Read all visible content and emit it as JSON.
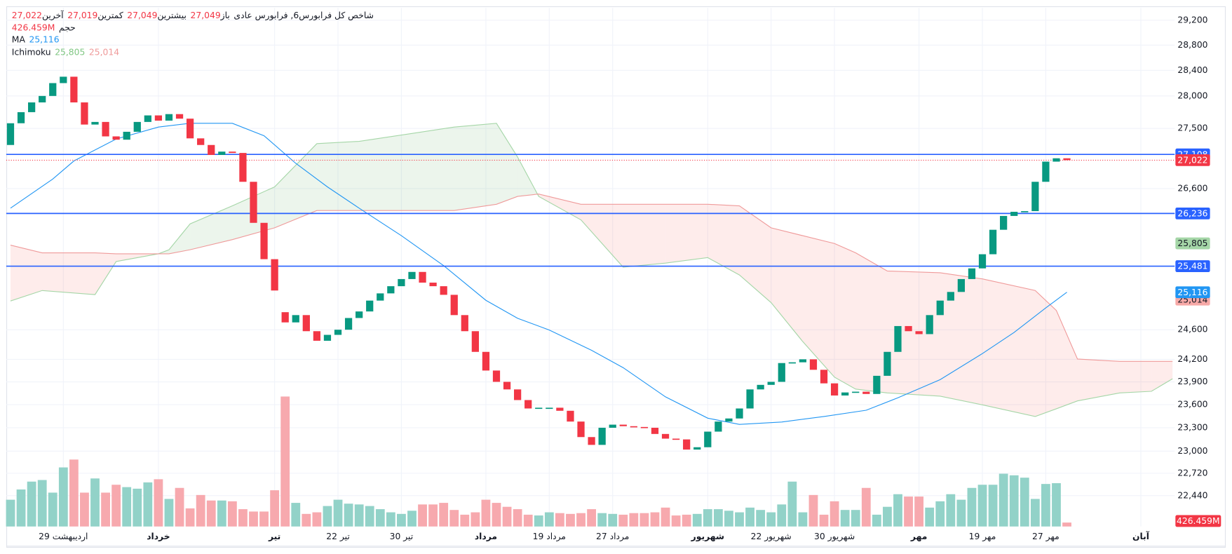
{
  "chart_data": {
    "type": "candlestick",
    "header": {
      "symbol": "شاخص کل فرابورس6, فرابورس عادی",
      "ohlc": [
        {
          "name": "باز",
          "value": 27049,
          "label": "27,049"
        },
        {
          "name": "بیشترین",
          "value": 27049,
          "label": "27,049"
        },
        {
          "name": "کمترین",
          "value": 27019,
          "label": "27,019"
        },
        {
          "name": "آخرین",
          "value": 27022,
          "label": "27,022"
        }
      ]
    },
    "up_color": "#089981",
    "down_color": "#f23645",
    "volume_up_color": "#92d2c8",
    "volume_down_color": "#f7a9ae",
    "log_scale": true,
    "grid": true,
    "xlim": [
      -0.4,
      110.2
    ],
    "ylim": [
      22060,
      29400
    ],
    "yticks": [
      {
        "value": 29200,
        "label": "29,200"
      },
      {
        "value": 28800,
        "label": "28,800"
      },
      {
        "value": 28400,
        "label": "28,400"
      },
      {
        "value": 28000,
        "label": "28,000"
      },
      {
        "value": 27500,
        "label": "27,500"
      },
      {
        "value": 26600,
        "label": "26,600"
      },
      {
        "value": 24600,
        "label": "24,600"
      },
      {
        "value": 24200,
        "label": "24,200"
      },
      {
        "value": 23900,
        "label": "23,900"
      },
      {
        "value": 23600,
        "label": "23,600"
      },
      {
        "value": 23300,
        "label": "23,300"
      },
      {
        "value": 23000,
        "label": "23,000"
      },
      {
        "value": 22720,
        "label": "22,720"
      },
      {
        "value": 22440,
        "label": "22,440"
      }
    ],
    "xticks": [
      {
        "value": 5,
        "label": "29 اردیبهشت"
      },
      {
        "value": 14,
        "label": "خرداد",
        "major": true
      },
      {
        "value": 25,
        "label": "تیر",
        "major": true
      },
      {
        "value": 31,
        "label": "22 تیر"
      },
      {
        "value": 37,
        "label": "30 تیر"
      },
      {
        "value": 45,
        "label": "مرداد",
        "major": true
      },
      {
        "value": 51,
        "label": "19 مرداد"
      },
      {
        "value": 57,
        "label": "27 مرداد"
      },
      {
        "value": 66,
        "label": "شهریور",
        "major": true
      },
      {
        "value": 72,
        "label": "22 شهریور"
      },
      {
        "value": 78,
        "label": "30 شهریور"
      },
      {
        "value": 86,
        "label": "مهر",
        "major": true
      },
      {
        "value": 92,
        "label": "19 مهر"
      },
      {
        "value": 98,
        "label": "27 مهر"
      },
      {
        "value": 107,
        "label": "آبان",
        "major": true
      }
    ],
    "open": [
      27250,
      27580,
      27750,
      27900,
      28000,
      28200,
      28300,
      27900,
      27560,
      27600,
      27380,
      27330,
      27450,
      27600,
      27700,
      27620,
      27720,
      27650,
      27350,
      27250,
      27100,
      27150,
      27130,
      26700,
      26100,
      25580,
      24840,
      24700,
      24800,
      24580,
      24450,
      24530,
      24600,
      24760,
      24850,
      25000,
      25100,
      25200,
      25300,
      25400,
      25250,
      25200,
      25080,
      24800,
      24580,
      24300,
      24050,
      23900,
      23800,
      23660,
      23550,
      23560,
      23560,
      23520,
      23380,
      23180,
      23080,
      23300,
      23340,
      23320,
      23310,
      23300,
      23220,
      23160,
      23150,
      23020,
      23050,
      23250,
      23380,
      23420,
      23550,
      23800,
      23860,
      23900,
      24150,
      24160,
      24200,
      24060,
      23880,
      23720,
      23760,
      23770,
      23740,
      23980,
      24300,
      24650,
      24580,
      24540,
      24800,
      25000,
      25120,
      25300,
      25450,
      25650,
      26000,
      26200,
      26260,
      26270,
      26700,
      27000,
      27050
    ],
    "close": [
      27580,
      27750,
      27900,
      28000,
      28200,
      28300,
      27900,
      27560,
      27600,
      27380,
      27330,
      27450,
      27600,
      27700,
      27620,
      27720,
      27650,
      27350,
      27250,
      27100,
      27150,
      27130,
      26700,
      26100,
      25580,
      25140,
      24700,
      24800,
      24580,
      24450,
      24530,
      24600,
      24760,
      24850,
      25000,
      25100,
      25200,
      25300,
      25400,
      25250,
      25200,
      25080,
      24800,
      24580,
      24300,
      24050,
      23900,
      23800,
      23660,
      23550,
      23560,
      23560,
      23520,
      23380,
      23180,
      23080,
      23300,
      23340,
      23320,
      23310,
      23300,
      23220,
      23160,
      23150,
      23020,
      23050,
      23250,
      23380,
      23420,
      23550,
      23800,
      23860,
      23900,
      24150,
      24160,
      24200,
      24060,
      23880,
      23720,
      23760,
      23770,
      23740,
      23980,
      24300,
      24650,
      24580,
      24540,
      24800,
      25000,
      25120,
      25300,
      25450,
      25650,
      26000,
      26200,
      26260,
      26270,
      26700,
      27000,
      27050,
      27022
    ],
    "volume": {
      "name": "حجم",
      "label": "426.459M",
      "ylim": [
        0,
        14500
      ],
      "values": [
        2890,
        3995,
        4845,
        5015,
        3655,
        6375,
        7225,
        3655,
        5185,
        3655,
        4505,
        4250,
        4080,
        4760,
        5100,
        2975,
        4165,
        1955,
        3400,
        2805,
        2805,
        2720,
        1870,
        1615,
        1615,
        3910,
        14025,
        2550,
        1360,
        1530,
        2210,
        2890,
        2465,
        2380,
        2210,
        1870,
        1530,
        1360,
        1700,
        2380,
        2380,
        2550,
        1785,
        1275,
        1530,
        2890,
        2550,
        2125,
        1870,
        1275,
        1190,
        1530,
        1445,
        1360,
        1445,
        1870,
        1445,
        1360,
        1275,
        1445,
        1445,
        1530,
        2040,
        1190,
        1275,
        1360,
        1870,
        1870,
        1700,
        1530,
        2040,
        1785,
        1530,
        2380,
        4845,
        1530,
        3400,
        1275,
        2720,
        1785,
        1785,
        4165,
        1275,
        2125,
        3485,
        3230,
        3230,
        2040,
        2720,
        3485,
        2890,
        4165,
        4505,
        4505,
        5695,
        5525,
        5270,
        2975,
        4590,
        4675,
        426.459
      ]
    },
    "ma": {
      "name": "MA",
      "color": "#2196f3",
      "last_label": "25,116",
      "x": [
        0,
        4,
        6,
        10,
        14,
        17,
        21,
        24,
        27,
        30,
        33,
        37,
        41,
        45,
        48,
        51,
        55,
        58,
        62,
        66,
        69,
        73,
        77,
        81,
        84,
        88,
        92,
        95,
        98,
        100
      ],
      "values": [
        26313,
        26741,
        27010,
        27340,
        27522,
        27579,
        27579,
        27390,
        26975,
        26625,
        26313,
        25915,
        25489,
        25004,
        24756,
        24596,
        24321,
        24088,
        23702,
        23424,
        23343,
        23374,
        23446,
        23527,
        23690,
        23929,
        24277,
        24563,
        24899,
        25116
      ]
    },
    "ichimoku": {
      "name": "Ichimoku",
      "legend_values": [
        {
          "value": 25805,
          "label": "25,805",
          "color": "#a5d6a7"
        },
        {
          "value": 25014,
          "label": "25,014",
          "color": "#f7a9a7"
        }
      ],
      "x": [
        0,
        3,
        8,
        10,
        14,
        15,
        17,
        21,
        25,
        29,
        33,
        38,
        42,
        46,
        48,
        50,
        54,
        58,
        62,
        66,
        69,
        72,
        75,
        78,
        80,
        83,
        88,
        92,
        97,
        99,
        101,
        105,
        108,
        110
      ],
      "span_a": {
        "color": "#a5d6a7",
        "values": [
          24995,
          25140,
          25083,
          25547,
          25656,
          25714,
          26085,
          26347,
          26625,
          27270,
          27305,
          27425,
          27522,
          27579,
          27069,
          26485,
          26143,
          25467,
          25524,
          25602,
          25357,
          24972,
          24438,
          23962,
          23804,
          23754,
          23711,
          23597,
          23446,
          23546,
          23649,
          23754,
          23775,
          23941
        ]
      },
      "span_b": {
        "color": "#ef9a9a",
        "values": [
          25780,
          25670,
          25670,
          25656,
          25656,
          25656,
          25714,
          25859,
          26028,
          26279,
          26279,
          26279,
          26279,
          26370,
          26485,
          26520,
          26370,
          26370,
          26370,
          26370,
          26347,
          26028,
          25915,
          25803,
          25670,
          25413,
          25389,
          25302,
          25140,
          24864,
          24204,
          24172,
          24172,
          24172
        ]
      }
    },
    "hlines": [
      {
        "value": 27108,
        "label": "27,108"
      },
      {
        "value": 26236,
        "label": "26,236"
      },
      {
        "value": 25481,
        "label": "25,481"
      }
    ],
    "hline_color": "#2962ff",
    "last_price": {
      "value": 27022,
      "label": "27,022",
      "color": "#f23645"
    }
  }
}
